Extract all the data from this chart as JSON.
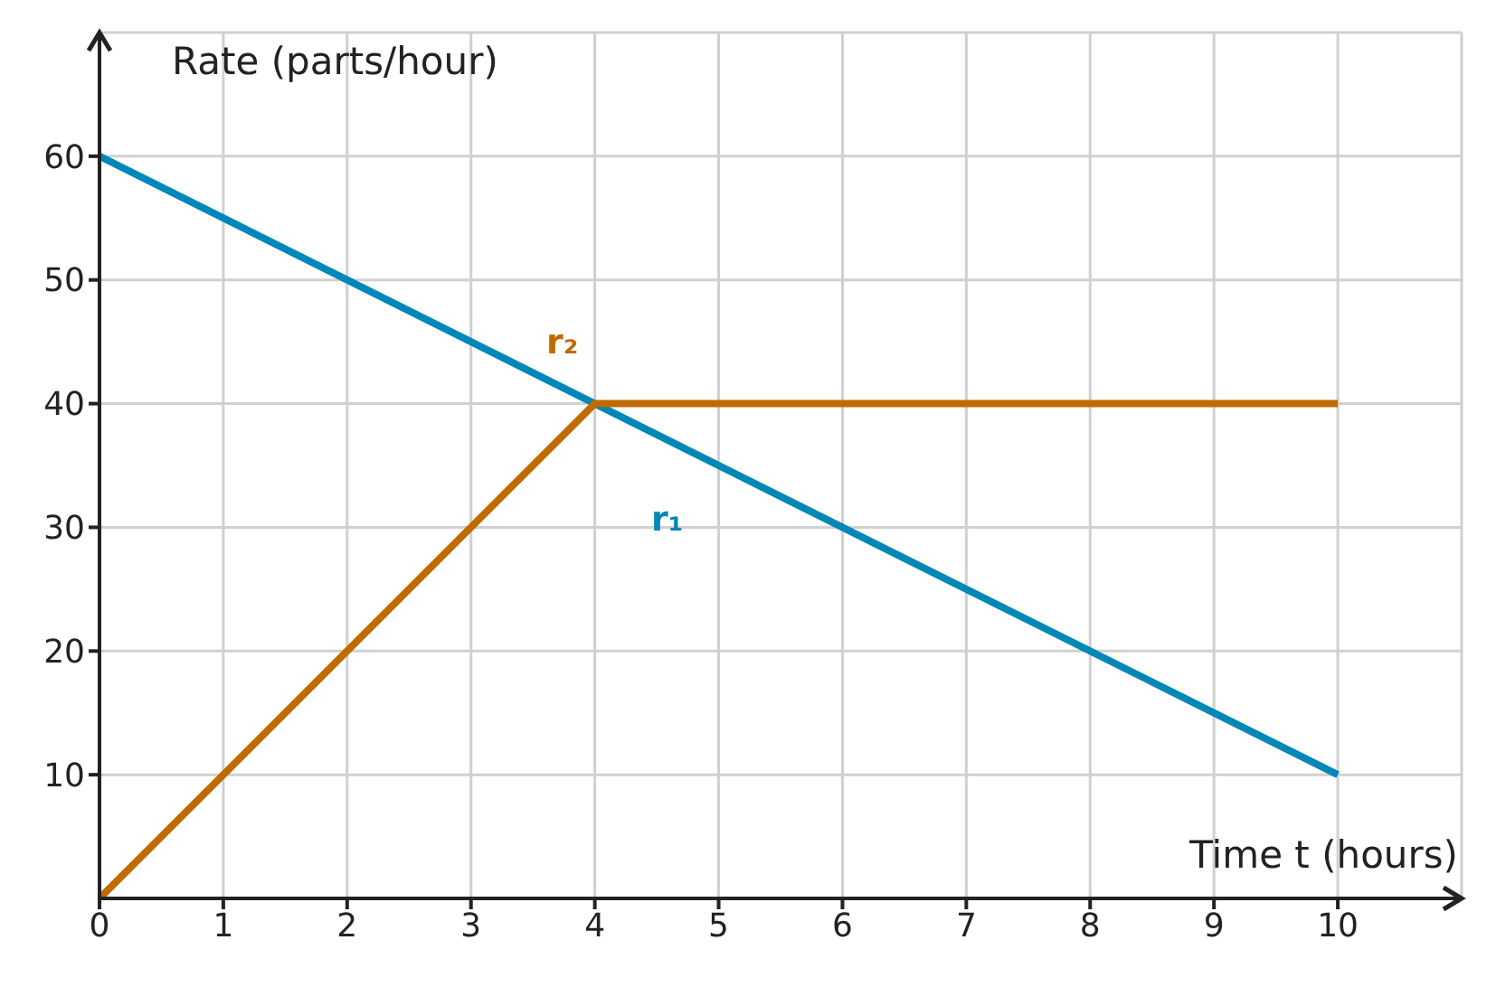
{
  "chart_data": {
    "type": "line",
    "xlabel": "Time t (hours)",
    "ylabel": "Rate (parts/hour)",
    "xlim": [
      0,
      11
    ],
    "ylim": [
      0,
      70
    ],
    "xticks": [
      0,
      1,
      2,
      3,
      4,
      5,
      6,
      7,
      8,
      9,
      10
    ],
    "yticks": [
      10,
      20,
      30,
      40,
      50,
      60
    ],
    "grid": true,
    "marker": "none",
    "line_style": "solid",
    "series": [
      {
        "name": "r₁",
        "color": "#0087b8",
        "x": [
          0,
          4,
          10
        ],
        "values": [
          60,
          40,
          10
        ]
      },
      {
        "name": "r₂",
        "color": "#c06a00",
        "x": [
          0,
          4,
          10
        ],
        "values": [
          0,
          40,
          40
        ]
      }
    ]
  }
}
